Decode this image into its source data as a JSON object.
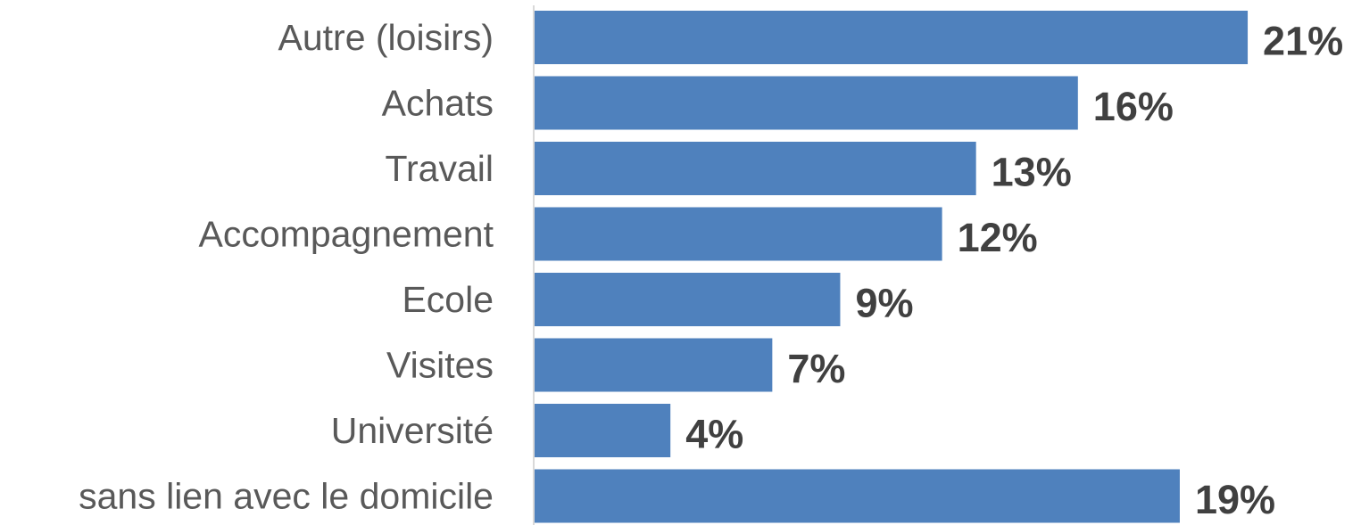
{
  "chart_data": {
    "type": "bar",
    "orientation": "horizontal",
    "categories": [
      "Autre (loisirs)",
      "Achats",
      "Travail",
      "Accompagnement",
      "Ecole",
      "Visites",
      "Université",
      "sans lien avec le domicile"
    ],
    "values": [
      21,
      16,
      13,
      12,
      9,
      7,
      4,
      19
    ],
    "data_labels": [
      "21%",
      "16%",
      "13%",
      "12%",
      "9%",
      "7%",
      "4%",
      "19%"
    ],
    "unit": "%",
    "title": "",
    "xlabel": "",
    "ylabel": "",
    "xlim": [
      0,
      21
    ],
    "grid": false,
    "legend": "none",
    "colors": {
      "bar": "#4f81bd",
      "axis": "#d9d9d9",
      "category_text": "#595959",
      "value_text": "#404040"
    }
  }
}
